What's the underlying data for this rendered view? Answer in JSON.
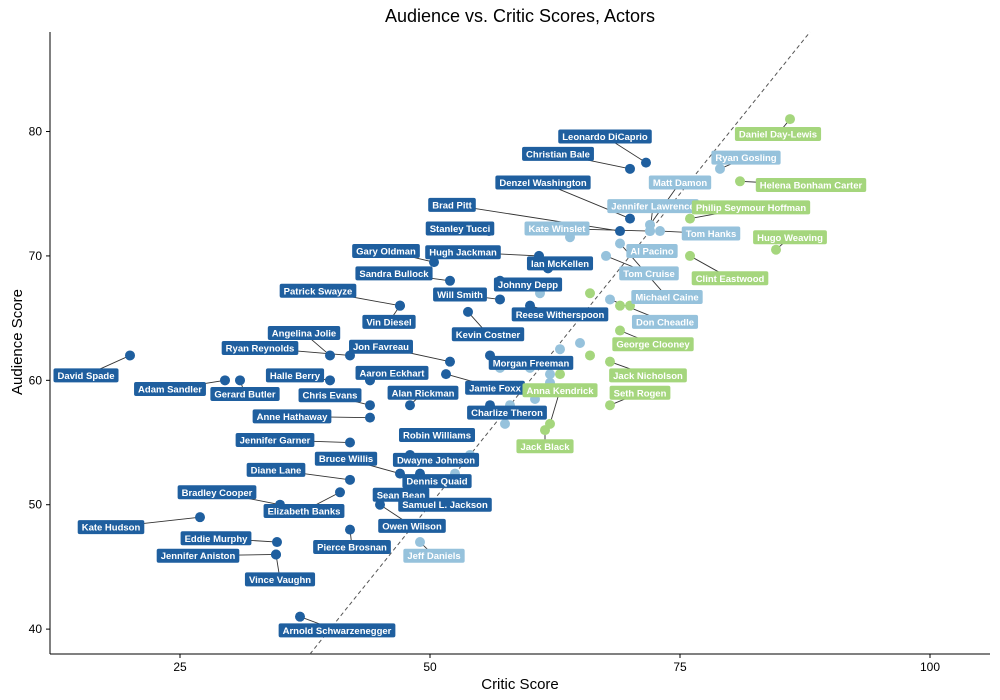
{
  "chart_data": {
    "type": "scatter",
    "title": "Audience vs. Critic Scores, Actors",
    "xlabel": "Critic Score",
    "ylabel": "Audience Score",
    "xlim": [
      12,
      106
    ],
    "ylim": [
      38,
      88
    ],
    "xticks": [
      25,
      50,
      75,
      100
    ],
    "yticks": [
      40,
      50,
      60,
      70,
      80
    ],
    "reference_line": "y = x",
    "grid": false,
    "colors": {
      "dark": "#1f5f9f",
      "light": "#96c2dc",
      "green": "#a5d67d",
      "line": "#555555"
    },
    "points": [
      {
        "x": 71.6,
        "y": 77.5,
        "c": "dark",
        "label": "Leonardo DiCaprio",
        "lx": 67.5,
        "ly": 79.6
      },
      {
        "x": 70.0,
        "y": 77.0,
        "c": "dark",
        "label": "Christian Bale",
        "lx": 62.8,
        "ly": 78.2
      },
      {
        "x": 70.0,
        "y": 73.0,
        "c": "dark",
        "label": "Denzel Washington",
        "lx": 61.3,
        "ly": 75.9
      },
      {
        "x": 69.0,
        "y": 72.0,
        "c": "dark",
        "label": "Brad Pitt",
        "lx": 52.2,
        "ly": 74.1
      },
      {
        "x": 55.9,
        "y": 72.0,
        "c": "dark",
        "label": "Stanley Tucci",
        "lx": 53.0,
        "ly": 72.2
      },
      {
        "x": 60.9,
        "y": 70.0,
        "c": "dark",
        "label": "Hugh Jackman",
        "lx": 53.3,
        "ly": 70.3
      },
      {
        "x": 50.4,
        "y": 69.5,
        "c": "dark",
        "label": "Gary Oldman",
        "lx": 45.6,
        "ly": 70.4
      },
      {
        "x": 61.8,
        "y": 69.0,
        "c": "dark",
        "label": "Ian McKellen",
        "lx": 63.0,
        "ly": 69.4
      },
      {
        "x": 52.0,
        "y": 68.0,
        "c": "dark",
        "label": "Sandra Bullock",
        "lx": 46.4,
        "ly": 68.6
      },
      {
        "x": 57.0,
        "y": 68.0,
        "c": "dark",
        "label": "Johnny Depp",
        "lx": 59.8,
        "ly": 67.7
      },
      {
        "x": 57.0,
        "y": 66.5,
        "c": "dark",
        "label": "Will Smith",
        "lx": 53.0,
        "ly": 66.9
      },
      {
        "x": 47.0,
        "y": 66.0,
        "c": "dark",
        "label": "Patrick Swayze",
        "lx": 38.8,
        "ly": 67.2
      },
      {
        "x": 47.0,
        "y": 66.0,
        "c": "dark",
        "label": "Vin Diesel",
        "lx": 45.9,
        "ly": 64.7
      },
      {
        "x": 60.0,
        "y": 66.0,
        "c": "dark",
        "label": "Reese Witherspoon",
        "lx": 63.0,
        "ly": 65.3
      },
      {
        "x": 53.8,
        "y": 65.5,
        "c": "dark",
        "label": "Kevin Costner",
        "lx": 55.8,
        "ly": 63.7
      },
      {
        "x": 40.0,
        "y": 62.0,
        "c": "dark",
        "label": "Angelina Jolie",
        "lx": 37.4,
        "ly": 63.8
      },
      {
        "x": 52.0,
        "y": 61.5,
        "c": "dark",
        "label": "Jon Favreau",
        "lx": 45.1,
        "ly": 62.7
      },
      {
        "x": 56.0,
        "y": 62.0,
        "c": "dark",
        "label": "Morgan Freeman",
        "lx": 60.1,
        "ly": 61.4
      },
      {
        "x": 42.0,
        "y": 62.0,
        "c": "dark",
        "label": "Ryan Reynolds",
        "lx": 33.0,
        "ly": 62.6
      },
      {
        "x": 44.0,
        "y": 60.0,
        "c": "dark",
        "label": "Aaron Eckhart",
        "lx": 46.2,
        "ly": 60.6
      },
      {
        "x": 51.6,
        "y": 60.5,
        "c": "dark",
        "label": "Jamie Foxx",
        "lx": 56.5,
        "ly": 59.4
      },
      {
        "x": 40.0,
        "y": 60.0,
        "c": "dark",
        "label": "Halle Berry",
        "lx": 36.5,
        "ly": 60.4
      },
      {
        "x": 20.0,
        "y": 62.0,
        "c": "dark",
        "label": "David Spade",
        "lx": 15.6,
        "ly": 60.4
      },
      {
        "x": 29.5,
        "y": 60.0,
        "c": "dark",
        "label": "Adam Sandler",
        "lx": 24.0,
        "ly": 59.3
      },
      {
        "x": 31.0,
        "y": 60.0,
        "c": "dark",
        "label": "Gerard Butler",
        "lx": 31.5,
        "ly": 58.9
      },
      {
        "x": 48.0,
        "y": 58.0,
        "c": "dark",
        "label": "Alan Rickman",
        "lx": 49.3,
        "ly": 59.0
      },
      {
        "x": 44.0,
        "y": 58.0,
        "c": "dark",
        "label": "Chris Evans",
        "lx": 40.0,
        "ly": 58.8
      },
      {
        "x": 56.0,
        "y": 58.0,
        "c": "dark",
        "label": "Charlize Theron",
        "lx": 57.7,
        "ly": 57.4
      },
      {
        "x": 44.0,
        "y": 57.0,
        "c": "dark",
        "label": "Anne Hathaway",
        "lx": 36.2,
        "ly": 57.1
      },
      {
        "x": 49.0,
        "y": 55.5,
        "c": "dark",
        "label": "Robin Williams",
        "lx": 50.7,
        "ly": 55.6
      },
      {
        "x": 42.0,
        "y": 55.0,
        "c": "dark",
        "label": "Jennifer Garner",
        "lx": 34.5,
        "ly": 55.2
      },
      {
        "x": 48.0,
        "y": 54.0,
        "c": "dark",
        "label": "Dwayne Johnson",
        "lx": 50.6,
        "ly": 53.6
      },
      {
        "x": 47.0,
        "y": 52.5,
        "c": "dark",
        "label": "Bruce Willis",
        "lx": 41.6,
        "ly": 53.7
      },
      {
        "x": 49.0,
        "y": 52.5,
        "c": "dark",
        "label": "Dennis Quaid",
        "lx": 50.7,
        "ly": 51.9
      },
      {
        "x": 42.0,
        "y": 52.0,
        "c": "dark",
        "label": "Diane Lane",
        "lx": 34.6,
        "ly": 52.8
      },
      {
        "x": 48.0,
        "y": 51.0,
        "c": "dark",
        "label": "Sean Bean",
        "lx": 47.1,
        "ly": 50.8
      },
      {
        "x": 48.0,
        "y": 51.0,
        "c": "dark",
        "label": "Samuel L. Jackson",
        "lx": 51.5,
        "ly": 50.0
      },
      {
        "x": 35.0,
        "y": 50.0,
        "c": "dark",
        "label": "Bradley Cooper",
        "lx": 28.7,
        "ly": 51.0
      },
      {
        "x": 41.0,
        "y": 51.0,
        "c": "dark",
        "label": "Elizabeth Banks",
        "lx": 37.4,
        "ly": 49.5
      },
      {
        "x": 27.0,
        "y": 49.0,
        "c": "dark",
        "label": "Kate Hudson",
        "lx": 18.1,
        "ly": 48.2
      },
      {
        "x": 45.0,
        "y": 50.0,
        "c": "dark",
        "label": "Owen Wilson",
        "lx": 48.2,
        "ly": 48.3
      },
      {
        "x": 34.7,
        "y": 47.0,
        "c": "dark",
        "label": "Eddie Murphy",
        "lx": 28.6,
        "ly": 47.3
      },
      {
        "x": 42.0,
        "y": 48.0,
        "c": "dark",
        "label": "Pierce Brosnan",
        "lx": 42.2,
        "ly": 46.6
      },
      {
        "x": 34.6,
        "y": 46.0,
        "c": "dark",
        "label": "Jennifer Aniston",
        "lx": 26.8,
        "ly": 45.9
      },
      {
        "x": 34.6,
        "y": 46.0,
        "c": "dark",
        "label": "Vince Vaughn",
        "lx": 35.0,
        "ly": 44.0
      },
      {
        "x": 37.0,
        "y": 41.0,
        "c": "dark",
        "label": "Arnold Schwarzenegger",
        "lx": 40.7,
        "ly": 39.9
      },
      {
        "x": 72.0,
        "y": 72.5,
        "c": "light",
        "label": "Matt Damon",
        "lx": 75.0,
        "ly": 75.9
      },
      {
        "x": 79.0,
        "y": 77.0,
        "c": "light",
        "label": "Ryan Gosling",
        "lx": 81.6,
        "ly": 77.9
      },
      {
        "x": 72.0,
        "y": 72.0,
        "c": "light",
        "label": "Jennifer Lawrence",
        "lx": 72.3,
        "ly": 74.0
      },
      {
        "x": 72.0,
        "y": 72.0,
        "c": "light",
        "label": "Kate Winslet",
        "lx": 62.7,
        "ly": 72.2
      },
      {
        "x": 73.0,
        "y": 72.0,
        "c": "light",
        "label": "Tom Hanks",
        "lx": 78.1,
        "ly": 71.8
      },
      {
        "x": 71.0,
        "y": 70.5,
        "c": "light",
        "label": "Al Pacino",
        "lx": 72.2,
        "ly": 70.4
      },
      {
        "x": 67.6,
        "y": 70.0,
        "c": "light",
        "label": "Tom Cruise",
        "lx": 71.9,
        "ly": 68.6
      },
      {
        "x": 69.0,
        "y": 71.0,
        "c": "light",
        "label": "Michael Caine",
        "lx": 73.7,
        "ly": 66.7
      },
      {
        "x": 68.0,
        "y": 66.5,
        "c": "light",
        "label": "Don Cheadle",
        "lx": 73.5,
        "ly": 64.7
      },
      {
        "x": 49.0,
        "y": 47.0,
        "c": "light",
        "label": "Jeff Daniels",
        "lx": 50.4,
        "ly": 45.9
      },
      {
        "x": 64.0,
        "y": 71.5,
        "c": "light",
        "label": "",
        "lx": null,
        "ly": null
      },
      {
        "x": 61.0,
        "y": 67.0,
        "c": "light",
        "label": "",
        "lx": null,
        "ly": null
      },
      {
        "x": 62.0,
        "y": 60.5,
        "c": "light",
        "label": "",
        "lx": null,
        "ly": null
      },
      {
        "x": 65.0,
        "y": 63.0,
        "c": "light",
        "label": "",
        "lx": null,
        "ly": null
      },
      {
        "x": 63.0,
        "y": 62.5,
        "c": "light",
        "label": "",
        "lx": null,
        "ly": null
      },
      {
        "x": 60.0,
        "y": 61.0,
        "c": "light",
        "label": "",
        "lx": null,
        "ly": null
      },
      {
        "x": 57.0,
        "y": 61.0,
        "c": "light",
        "label": "",
        "lx": null,
        "ly": null
      },
      {
        "x": 60.5,
        "y": 58.5,
        "c": "light",
        "label": "",
        "lx": null,
        "ly": null
      },
      {
        "x": 62.0,
        "y": 59.8,
        "c": "light",
        "label": "",
        "lx": null,
        "ly": null
      },
      {
        "x": 58.0,
        "y": 58.0,
        "c": "light",
        "label": "",
        "lx": null,
        "ly": null
      },
      {
        "x": 57.5,
        "y": 56.5,
        "c": "light",
        "label": "",
        "lx": null,
        "ly": null
      },
      {
        "x": 54.0,
        "y": 54.0,
        "c": "light",
        "label": "",
        "lx": null,
        "ly": null
      },
      {
        "x": 52.5,
        "y": 52.5,
        "c": "light",
        "label": "",
        "lx": null,
        "ly": null
      },
      {
        "x": 86.0,
        "y": 81.0,
        "c": "green",
        "label": "Daniel Day-Lewis",
        "lx": 84.8,
        "ly": 79.8
      },
      {
        "x": 81.0,
        "y": 76.0,
        "c": "green",
        "label": "Helena Bonham Carter",
        "lx": 88.1,
        "ly": 75.7
      },
      {
        "x": 76.0,
        "y": 73.0,
        "c": "green",
        "label": "Philip Seymour Hoffman",
        "lx": 82.1,
        "ly": 73.9
      },
      {
        "x": 84.6,
        "y": 70.5,
        "c": "green",
        "label": "Hugo Weaving",
        "lx": 86.0,
        "ly": 71.5
      },
      {
        "x": 76.0,
        "y": 70.0,
        "c": "green",
        "label": "Clint Eastwood",
        "lx": 80.0,
        "ly": 68.2
      },
      {
        "x": 69.0,
        "y": 64.0,
        "c": "green",
        "label": "George Clooney",
        "lx": 72.3,
        "ly": 62.9
      },
      {
        "x": 68.0,
        "y": 61.5,
        "c": "green",
        "label": "Jack Nicholson",
        "lx": 71.8,
        "ly": 60.4
      },
      {
        "x": 62.0,
        "y": 56.5,
        "c": "green",
        "label": "Anna Kendrick",
        "lx": 63.0,
        "ly": 59.2
      },
      {
        "x": 68.0,
        "y": 58.0,
        "c": "green",
        "label": "Seth Rogen",
        "lx": 71.0,
        "ly": 59.0
      },
      {
        "x": 61.5,
        "y": 56.0,
        "c": "green",
        "label": "Jack Black",
        "lx": 61.5,
        "ly": 54.7
      },
      {
        "x": 69.0,
        "y": 66.0,
        "c": "green",
        "label": "",
        "lx": null,
        "ly": null
      },
      {
        "x": 70.0,
        "y": 66.0,
        "c": "green",
        "label": "",
        "lx": null,
        "ly": null
      },
      {
        "x": 66.0,
        "y": 62.0,
        "c": "green",
        "label": "",
        "lx": null,
        "ly": null
      },
      {
        "x": 63.0,
        "y": 60.5,
        "c": "green",
        "label": "",
        "lx": null,
        "ly": null
      },
      {
        "x": 66.0,
        "y": 67.0,
        "c": "green",
        "label": "",
        "lx": null,
        "ly": null
      }
    ]
  }
}
